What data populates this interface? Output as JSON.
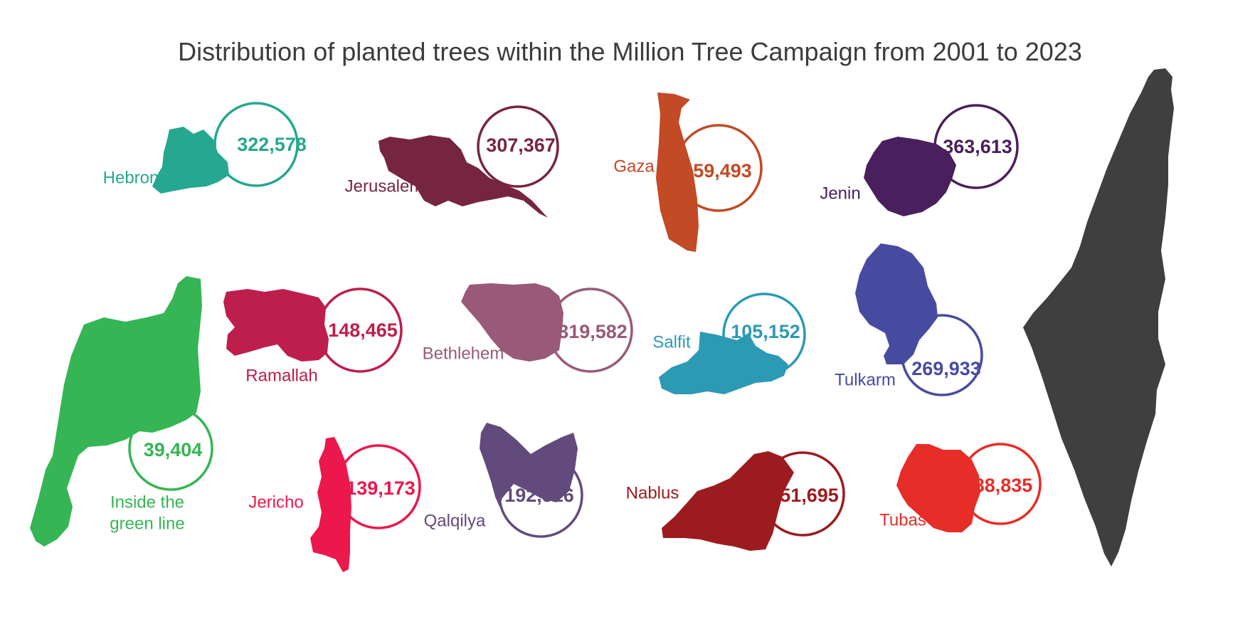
{
  "title": "Distribution of planted trees within the Million Tree Campaign from 2001 to 2023",
  "chart_data": {
    "type": "pictorial-map",
    "title": "Distribution of planted trees within the Million Tree Campaign from 2001 to 2023",
    "regions": [
      {
        "name": "Hebron",
        "value": 322578,
        "label": "322,578",
        "color": "#26a790"
      },
      {
        "name": "Jerusalem",
        "value": 307367,
        "label": "307,367",
        "color": "#762540"
      },
      {
        "name": "Gaza",
        "value": 459493,
        "label": "459,493",
        "color": "#c24a25"
      },
      {
        "name": "Jenin",
        "value": 363613,
        "label": "363,613",
        "color": "#4a1f5e"
      },
      {
        "name": "Inside the green line",
        "value": 39404,
        "label": "39,404",
        "color": "#35b554"
      },
      {
        "name": "Ramallah",
        "value": 148465,
        "label": "148,465",
        "color": "#be1e4b"
      },
      {
        "name": "Bethlehem",
        "value": 319582,
        "label": "319,582",
        "color": "#985a78"
      },
      {
        "name": "Salfit",
        "value": 105152,
        "label": "105,152",
        "color": "#2d9ab4"
      },
      {
        "name": "Tulkarm",
        "value": 269933,
        "label": "269,933",
        "color": "#474ba0"
      },
      {
        "name": "Jericho",
        "value": 139173,
        "label": "139,173",
        "color": "#ec174d"
      },
      {
        "name": "Qalqilya",
        "value": 192516,
        "label": "192,516",
        "color": "#634a7c"
      },
      {
        "name": "Nablus",
        "value": 251695,
        "label": "251,695",
        "color": "#9c1b1f"
      },
      {
        "name": "Tubas",
        "value": 88835,
        "label": "88,835",
        "color": "#e62d27"
      }
    ],
    "overview_map_color": "#3f3f3f"
  }
}
